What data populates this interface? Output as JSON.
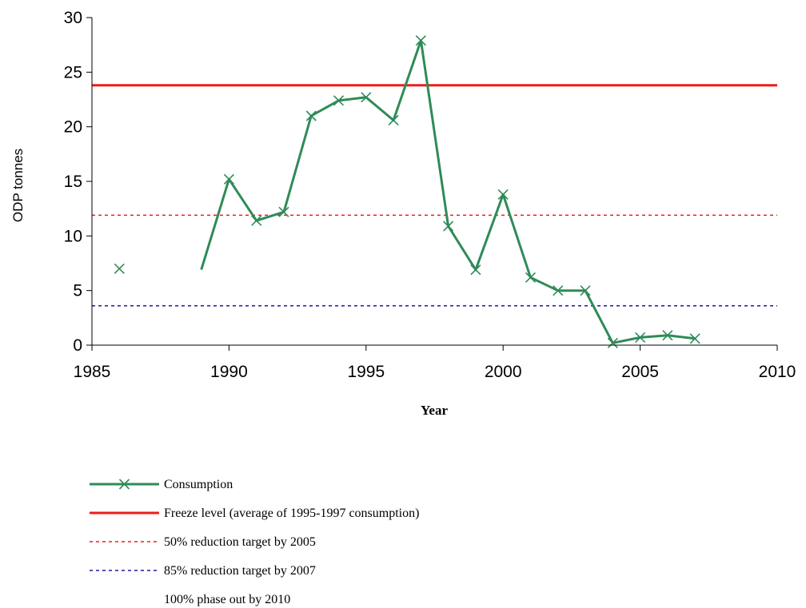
{
  "chart_data": {
    "type": "line",
    "title": "",
    "xlabel": "Year",
    "ylabel": "ODP tonnes",
    "xlim": [
      1985,
      2010
    ],
    "ylim": [
      0,
      30
    ],
    "x_ticks": [
      "1985",
      "1990",
      "1995",
      "2000",
      "2005",
      "2010"
    ],
    "y_ticks": [
      "0",
      "5",
      "10",
      "15",
      "20",
      "25",
      "30"
    ],
    "grid": false,
    "legend_position": "bottom",
    "series": [
      {
        "name": "Consumption",
        "style": "line-with-x-markers",
        "color": "#2e8b57",
        "points": [
          {
            "x": 1986,
            "y": 7.0
          },
          {
            "x": 1989,
            "y": 7.0
          },
          {
            "x": 1990,
            "y": 15.2
          },
          {
            "x": 1991,
            "y": 11.4
          },
          {
            "x": 1992,
            "y": 12.2
          },
          {
            "x": 1993,
            "y": 21.0
          },
          {
            "x": 1994,
            "y": 22.4
          },
          {
            "x": 1995,
            "y": 22.7
          },
          {
            "x": 1996,
            "y": 20.6
          },
          {
            "x": 1997,
            "y": 27.9
          },
          {
            "x": 1998,
            "y": 10.9
          },
          {
            "x": 1999,
            "y": 6.9
          },
          {
            "x": 2000,
            "y": 13.8
          },
          {
            "x": 2001,
            "y": 6.2
          },
          {
            "x": 2002,
            "y": 5.0
          },
          {
            "x": 2003,
            "y": 5.0
          },
          {
            "x": 2004,
            "y": 0.2
          },
          {
            "x": 2005,
            "y": 0.7
          },
          {
            "x": 2006,
            "y": 0.9
          },
          {
            "x": 2007,
            "y": 0.6
          }
        ],
        "line_segments": [
          [
            1989,
            2007
          ]
        ],
        "markers": [
          1986,
          1990,
          1991,
          1992,
          1993,
          1994,
          1995,
          1996,
          1997,
          1998,
          1999,
          2000,
          2001,
          2002,
          2003,
          2004,
          2005,
          2006,
          2007
        ]
      },
      {
        "name": "Freeze level (average of 1995-1997 consumption)",
        "style": "solid",
        "color": "#ee1c1c",
        "y": 23.8
      },
      {
        "name": "50% reduction target by 2005",
        "style": "dotted",
        "color": "#ee1c1c",
        "y": 11.9
      },
      {
        "name": "85% reduction target by 2007",
        "style": "dotted",
        "color": "#1a1aa8",
        "y": 3.6
      },
      {
        "name": "100% phase out by 2010",
        "style": "none",
        "color": "#ffffff",
        "y": 0
      }
    ]
  }
}
